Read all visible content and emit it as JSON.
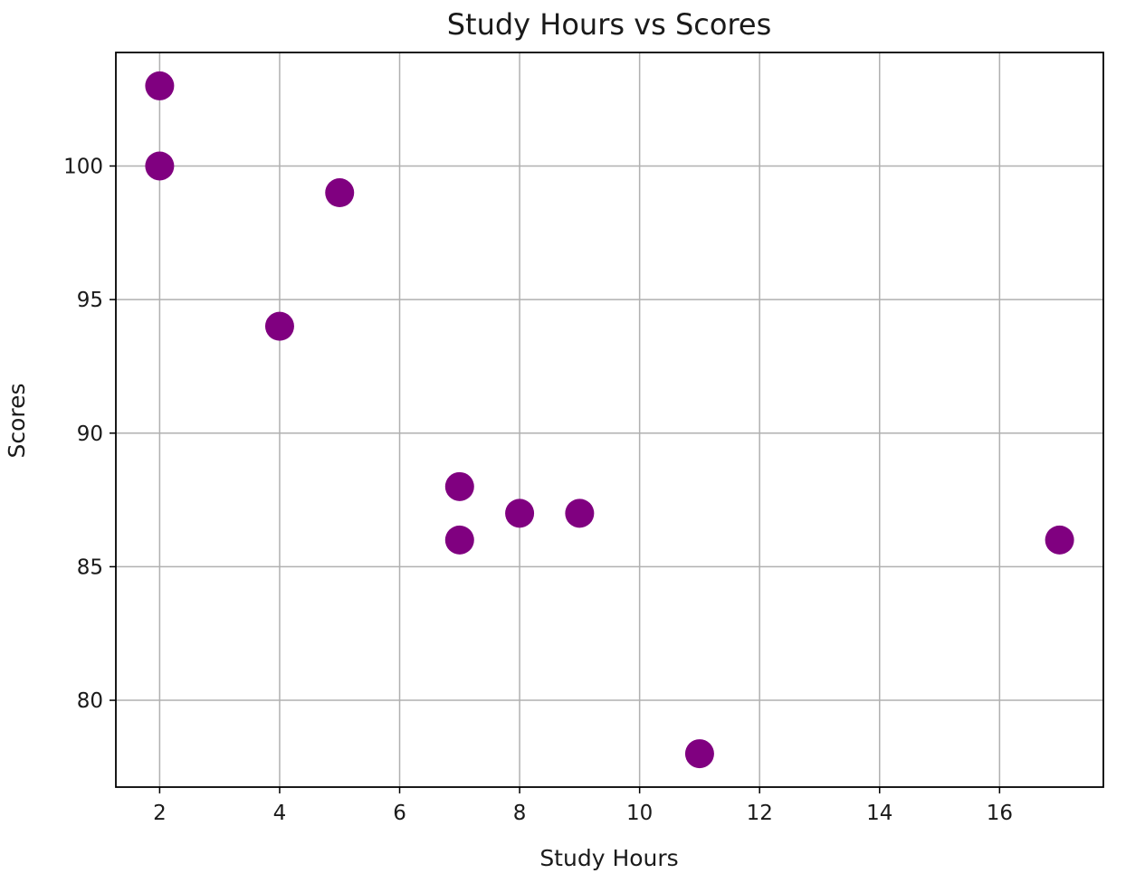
{
  "chart_data": {
    "type": "scatter",
    "title": "Study Hours vs Scores",
    "xlabel": "Study Hours",
    "ylabel": "Scores",
    "xlim": [
      1.27,
      17.73
    ],
    "ylim": [
      76.75,
      104.25
    ],
    "xticks": [
      2,
      4,
      6,
      8,
      10,
      12,
      14,
      16
    ],
    "yticks": [
      80,
      85,
      90,
      95,
      100
    ],
    "grid": true,
    "marker_color": "#800080",
    "series": [
      {
        "x": [
          2,
          2,
          5,
          4,
          7,
          7,
          8,
          9,
          17,
          11
        ],
        "y": [
          103,
          100,
          99,
          94,
          88,
          86,
          87,
          87,
          86,
          78
        ]
      }
    ]
  }
}
